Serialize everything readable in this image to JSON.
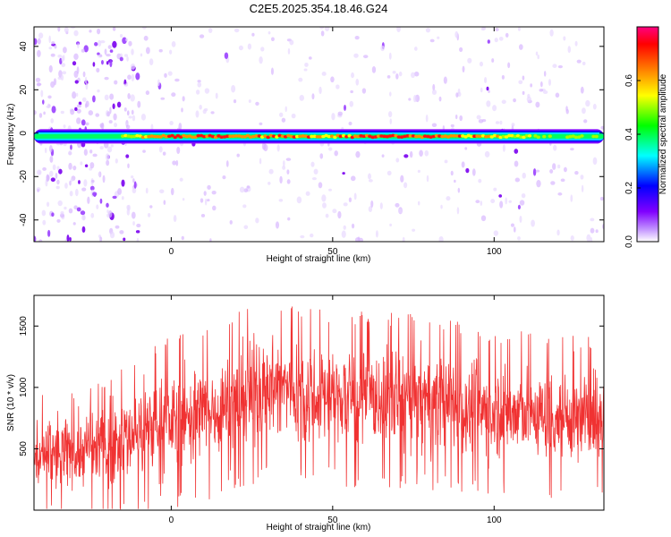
{
  "title": "C2E5.2025.354.18.46.G24",
  "chart_data": [
    {
      "type": "heatmap",
      "xlabel": "Height of straight line (km)",
      "ylabel": "Frequency (Hz)",
      "xlim": [
        -42.5,
        134
      ],
      "ylim": [
        -50,
        49
      ],
      "xticks": [
        0,
        50,
        100
      ],
      "yticks": [
        -40,
        -20,
        0,
        20,
        40
      ],
      "colorbar": {
        "label": "Normalized spectral amplitude",
        "range": [
          0,
          0.8
        ],
        "ticks": [
          "0.0",
          "0.2",
          "0.4",
          "0.6"
        ],
        "colors": [
          "#ffffff",
          "#8000ff",
          "#0000ff",
          "#00ffff",
          "#00ff00",
          "#ffff00",
          "#ff8000",
          "#ff0000",
          "#ff0080"
        ]
      },
      "ridge": {
        "frequency_hz": -1.5,
        "amplitude_by_height": [
          {
            "x": -42,
            "amp": 0.35
          },
          {
            "x": -20,
            "amp": 0.4
          },
          {
            "x": -10,
            "amp": 0.55
          },
          {
            "x": 0,
            "amp": 0.7
          },
          {
            "x": 10,
            "amp": 0.75
          },
          {
            "x": 30,
            "amp": 0.72
          },
          {
            "x": 50,
            "amp": 0.62
          },
          {
            "x": 75,
            "amp": 0.8
          },
          {
            "x": 100,
            "amp": 0.6
          },
          {
            "x": 115,
            "amp": 0.45
          },
          {
            "x": 134,
            "amp": 0.4
          }
        ]
      }
    },
    {
      "type": "line",
      "xlabel": "Height of straight line (km)",
      "ylabel": "SNR (10 * v/v)",
      "xlim": [
        -42.5,
        134
      ],
      "ylim": [
        0,
        1750
      ],
      "xticks": [
        0,
        50,
        100
      ],
      "yticks": [
        500,
        1000,
        1500
      ],
      "color": "#f03232",
      "trend": [
        {
          "x": -42.5,
          "lo": 50,
          "hi": 800
        },
        {
          "x": -20,
          "lo": 30,
          "hi": 1000
        },
        {
          "x": -10,
          "lo": 100,
          "hi": 1200
        },
        {
          "x": 0,
          "lo": 150,
          "hi": 1300
        },
        {
          "x": 15,
          "lo": 250,
          "hi": 1400
        },
        {
          "x": 30,
          "lo": 400,
          "hi": 1650
        },
        {
          "x": 50,
          "lo": 350,
          "hi": 1500
        },
        {
          "x": 75,
          "lo": 300,
          "hi": 1500
        },
        {
          "x": 100,
          "lo": 250,
          "hi": 1350
        },
        {
          "x": 134,
          "lo": 200,
          "hi": 1300
        }
      ]
    }
  ]
}
